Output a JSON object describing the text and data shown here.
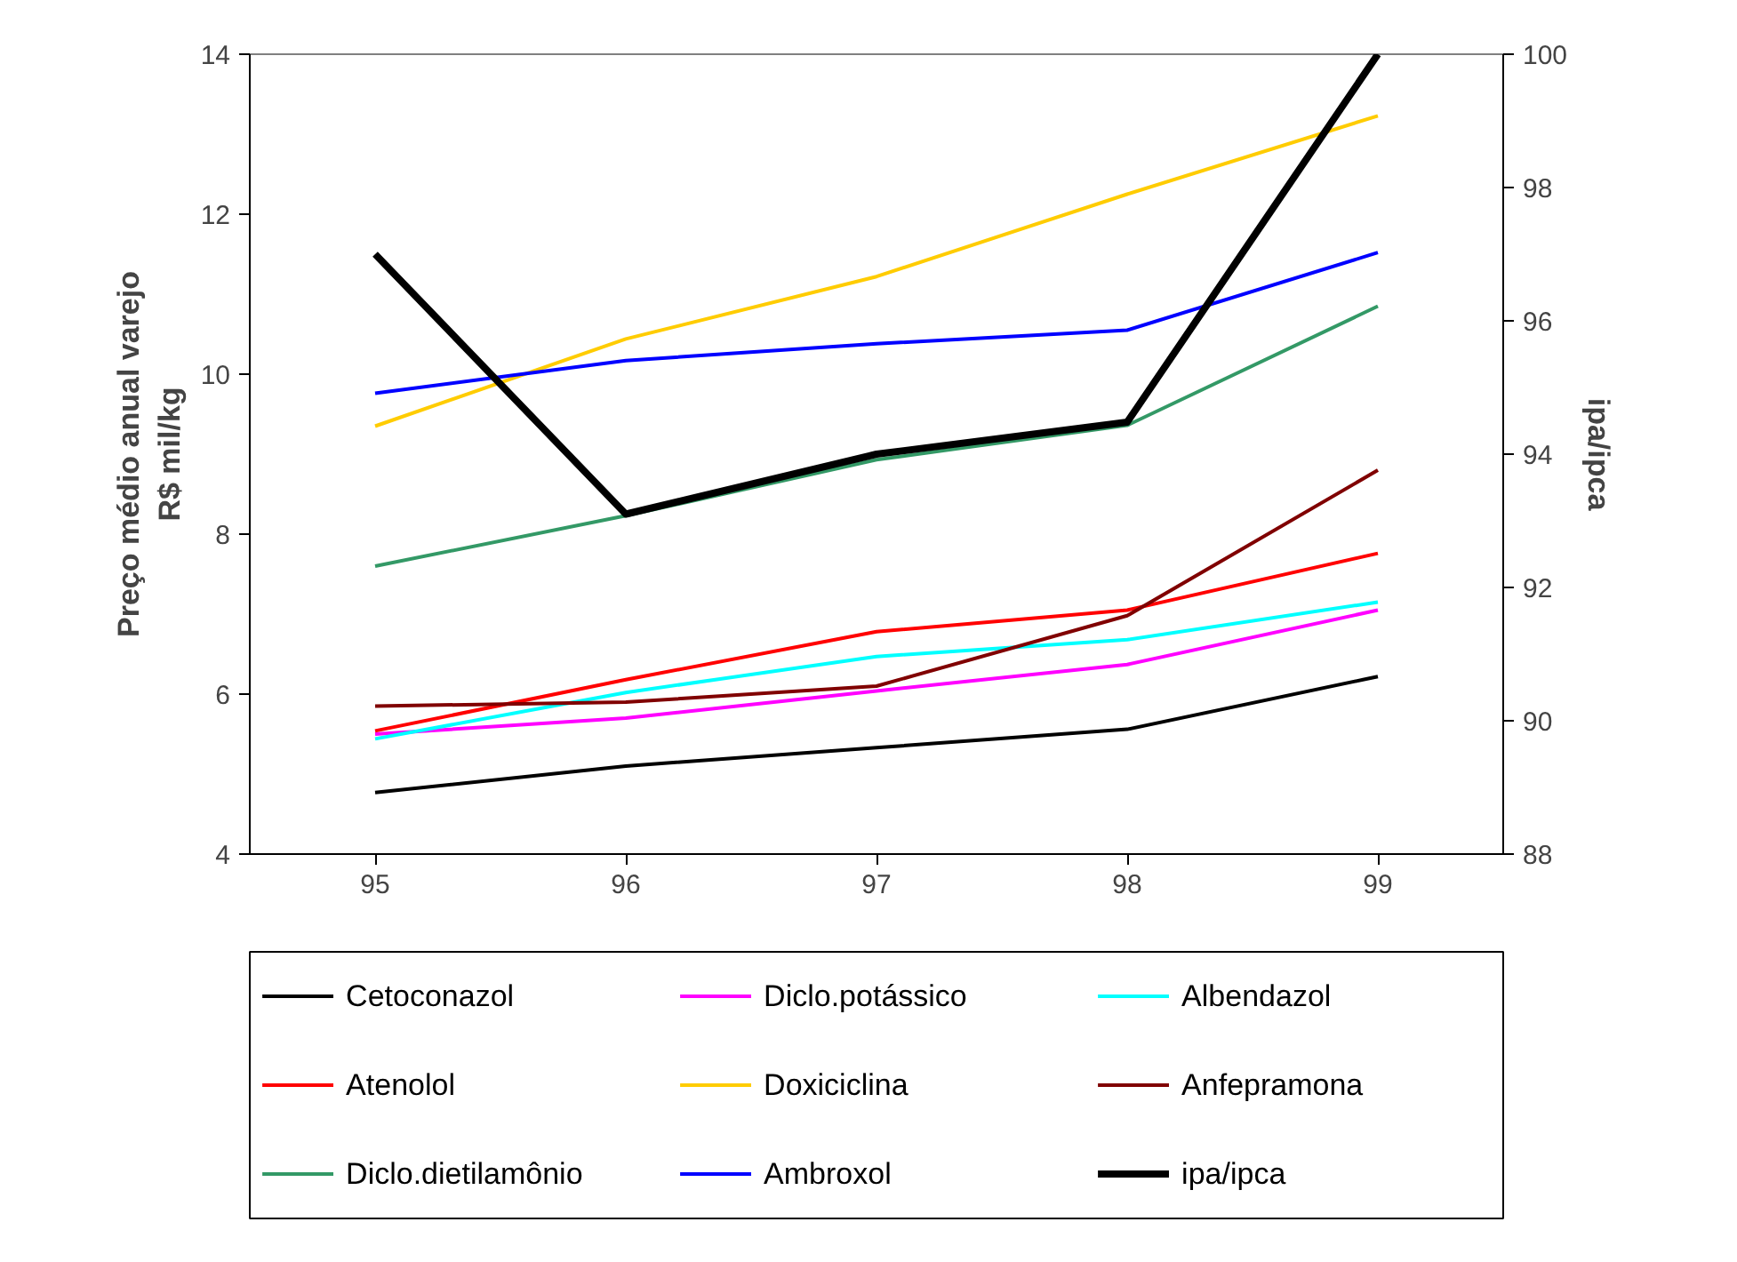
{
  "chart_data": {
    "type": "line",
    "categories": [
      "95",
      "96",
      "97",
      "98",
      "99"
    ],
    "ylabel": "Preço médio anual varejo\nR$ mil/kg",
    "y2label": "ipa/ipca",
    "ylim": [
      4,
      14
    ],
    "yticks": [
      4,
      6,
      8,
      10,
      12,
      14
    ],
    "y2lim": [
      88,
      100
    ],
    "y2ticks": [
      88,
      90,
      92,
      94,
      96,
      98,
      100
    ],
    "grid": false,
    "legend": "bottom",
    "marker": "none",
    "series": [
      {
        "name": "Cetoconazol",
        "color": "#000000",
        "values": [
          4.77,
          5.1,
          5.33,
          5.56,
          6.22
        ]
      },
      {
        "name": "Diclo.potássico",
        "color": "#ff00ff",
        "values": [
          5.5,
          5.7,
          6.04,
          6.37,
          7.05
        ]
      },
      {
        "name": "Albendazol",
        "color": "#00ffff",
        "values": [
          5.44,
          6.02,
          6.47,
          6.68,
          7.15
        ]
      },
      {
        "name": "Atenolol",
        "color": "#ff0000",
        "values": [
          5.54,
          6.18,
          6.78,
          7.05,
          7.76
        ]
      },
      {
        "name": "Doxiciclina",
        "color": "#ffcc00",
        "values": [
          9.35,
          10.44,
          11.22,
          12.25,
          13.23
        ]
      },
      {
        "name": "Anfepramona",
        "color": "#800000",
        "values": [
          5.85,
          5.9,
          6.1,
          6.98,
          8.8
        ]
      },
      {
        "name": "Diclo.dietilamônio",
        "color": "#339966",
        "values": [
          7.6,
          8.23,
          8.93,
          9.36,
          10.85
        ]
      },
      {
        "name": "Ambroxol",
        "color": "#0000ff",
        "values": [
          9.76,
          10.17,
          10.38,
          10.55,
          11.52
        ]
      },
      {
        "name": "ipa/ipca",
        "color": "#000000",
        "axis": "y2",
        "values": [
          97.0,
          93.1,
          94.0,
          94.48,
          100
        ]
      }
    ]
  }
}
